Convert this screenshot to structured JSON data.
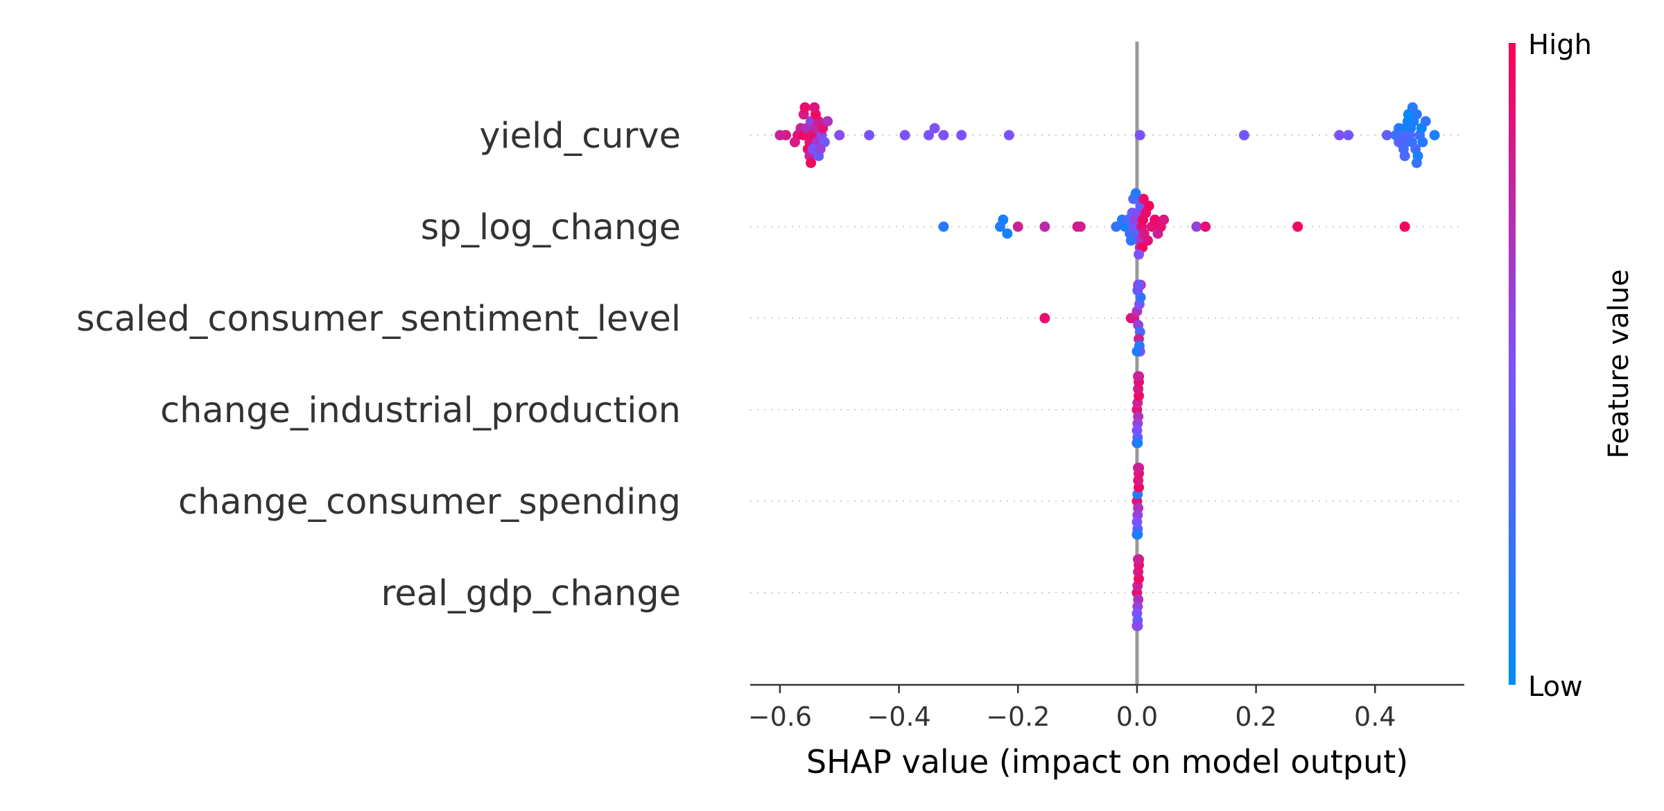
{
  "chart_data": {
    "type": "scatter",
    "subtype": "shap-beeswarm",
    "title": "",
    "xlabel": "SHAP value (impact on model output)",
    "ylabel": "",
    "xlim": [
      -0.65,
      0.55
    ],
    "x_ticks": [
      -0.6,
      -0.4,
      -0.2,
      0.0,
      0.2,
      0.4
    ],
    "x_tick_labels": [
      "−0.6",
      "−0.4",
      "−0.2",
      "0.0",
      "0.2",
      "0.4"
    ],
    "zero_line": 0.0,
    "grid": false,
    "features": [
      {
        "name": "yield_curve",
        "points": [
          {
            "x": -0.59,
            "v": 0.85
          },
          {
            "x": -0.57,
            "v": 0.9
          },
          {
            "x": -0.565,
            "v": 0.8
          },
          {
            "x": -0.56,
            "v": 0.95
          },
          {
            "x": -0.555,
            "v": 0.7
          },
          {
            "x": -0.55,
            "v": 0.88
          },
          {
            "x": -0.548,
            "v": 0.6
          },
          {
            "x": -0.545,
            "v": 0.92
          },
          {
            "x": -0.54,
            "v": 0.75
          },
          {
            "x": -0.538,
            "v": 0.65
          },
          {
            "x": -0.535,
            "v": 0.82
          },
          {
            "x": -0.53,
            "v": 0.55
          },
          {
            "x": -0.528,
            "v": 0.9
          },
          {
            "x": -0.525,
            "v": 0.45
          },
          {
            "x": -0.52,
            "v": 0.7
          },
          {
            "x": -0.553,
            "v": 0.98
          },
          {
            "x": -0.56,
            "v": 0.85
          },
          {
            "x": -0.55,
            "v": 0.78
          },
          {
            "x": -0.545,
            "v": 0.5
          },
          {
            "x": -0.54,
            "v": 0.95
          },
          {
            "x": -0.535,
            "v": 0.4
          },
          {
            "x": -0.558,
            "v": 0.93
          },
          {
            "x": -0.542,
            "v": 0.87
          },
          {
            "x": -0.532,
            "v": 0.6
          },
          {
            "x": -0.548,
            "v": 0.96
          },
          {
            "x": -0.6,
            "v": 0.8
          },
          {
            "x": -0.575,
            "v": 0.85
          },
          {
            "x": -0.5,
            "v": 0.55
          },
          {
            "x": -0.45,
            "v": 0.5
          },
          {
            "x": -0.39,
            "v": 0.5
          },
          {
            "x": -0.35,
            "v": 0.5
          },
          {
            "x": -0.34,
            "v": 0.5
          },
          {
            "x": -0.325,
            "v": 0.5
          },
          {
            "x": -0.295,
            "v": 0.5
          },
          {
            "x": -0.215,
            "v": 0.5
          },
          {
            "x": 0.005,
            "v": 0.5
          },
          {
            "x": 0.18,
            "v": 0.45
          },
          {
            "x": 0.34,
            "v": 0.5
          },
          {
            "x": 0.355,
            "v": 0.45
          },
          {
            "x": 0.42,
            "v": 0.4
          },
          {
            "x": 0.435,
            "v": 0.2
          },
          {
            "x": 0.44,
            "v": 0.15
          },
          {
            "x": 0.445,
            "v": 0.3
          },
          {
            "x": 0.45,
            "v": 0.1
          },
          {
            "x": 0.452,
            "v": 0.25
          },
          {
            "x": 0.455,
            "v": 0.05
          },
          {
            "x": 0.458,
            "v": 0.35
          },
          {
            "x": 0.46,
            "v": 0.12
          },
          {
            "x": 0.462,
            "v": 0.22
          },
          {
            "x": 0.465,
            "v": 0.08
          },
          {
            "x": 0.468,
            "v": 0.3
          },
          {
            "x": 0.47,
            "v": 0.18
          },
          {
            "x": 0.472,
            "v": 0.1
          },
          {
            "x": 0.475,
            "v": 0.25
          },
          {
            "x": 0.478,
            "v": 0.05
          },
          {
            "x": 0.48,
            "v": 0.15
          },
          {
            "x": 0.448,
            "v": 0.28
          },
          {
            "x": 0.456,
            "v": 0.02
          },
          {
            "x": 0.463,
            "v": 0.16
          },
          {
            "x": 0.45,
            "v": 0.3
          },
          {
            "x": 0.485,
            "v": 0.2
          },
          {
            "x": 0.5,
            "v": 0.1
          },
          {
            "x": 0.44,
            "v": 0.35
          },
          {
            "x": 0.47,
            "v": 0.2
          }
        ]
      },
      {
        "name": "sp_log_change",
        "points": [
          {
            "x": -0.325,
            "v": 0.15
          },
          {
            "x": -0.23,
            "v": 0.12
          },
          {
            "x": -0.225,
            "v": 0.1
          },
          {
            "x": -0.218,
            "v": 0.08
          },
          {
            "x": -0.2,
            "v": 0.8
          },
          {
            "x": -0.155,
            "v": 0.75
          },
          {
            "x": -0.1,
            "v": 0.85
          },
          {
            "x": -0.095,
            "v": 0.82
          },
          {
            "x": -0.035,
            "v": 0.2
          },
          {
            "x": -0.025,
            "v": 0.15
          },
          {
            "x": -0.02,
            "v": 0.1
          },
          {
            "x": -0.015,
            "v": 0.3
          },
          {
            "x": -0.012,
            "v": 0.25
          },
          {
            "x": -0.008,
            "v": 0.45
          },
          {
            "x": -0.005,
            "v": 0.5
          },
          {
            "x": -0.003,
            "v": 0.6
          },
          {
            "x": 0.0,
            "v": 0.35
          },
          {
            "x": 0.002,
            "v": 0.55
          },
          {
            "x": 0.004,
            "v": 0.65
          },
          {
            "x": 0.006,
            "v": 0.4
          },
          {
            "x": 0.008,
            "v": 0.9
          },
          {
            "x": 0.01,
            "v": 0.95
          },
          {
            "x": 0.012,
            "v": 0.85
          },
          {
            "x": 0.015,
            "v": 0.92
          },
          {
            "x": 0.018,
            "v": 0.88
          },
          {
            "x": 0.02,
            "v": 0.96
          },
          {
            "x": 0.025,
            "v": 0.9
          },
          {
            "x": 0.03,
            "v": 0.94
          },
          {
            "x": 0.035,
            "v": 0.8
          },
          {
            "x": 0.04,
            "v": 0.9
          },
          {
            "x": 0.045,
            "v": 0.85
          },
          {
            "x": 0.1,
            "v": 0.6
          },
          {
            "x": 0.115,
            "v": 0.9
          },
          {
            "x": 0.27,
            "v": 0.95
          },
          {
            "x": 0.45,
            "v": 0.97
          },
          {
            "x": -0.01,
            "v": 0.2
          },
          {
            "x": 0.005,
            "v": 0.7
          },
          {
            "x": -0.006,
            "v": 0.3
          },
          {
            "x": 0.009,
            "v": 0.97
          },
          {
            "x": 0.003,
            "v": 0.5
          },
          {
            "x": 0.011,
            "v": 0.92
          },
          {
            "x": -0.002,
            "v": 0.15
          }
        ]
      },
      {
        "name": "scaled_consumer_sentiment_level",
        "points": [
          {
            "x": -0.155,
            "v": 0.92
          },
          {
            "x": -0.01,
            "v": 0.9
          },
          {
            "x": -0.005,
            "v": 0.85
          },
          {
            "x": 0.0,
            "v": 0.7
          },
          {
            "x": 0.002,
            "v": 0.6
          },
          {
            "x": 0.004,
            "v": 0.5
          },
          {
            "x": 0.005,
            "v": 0.3
          },
          {
            "x": 0.006,
            "v": 0.2
          },
          {
            "x": 0.003,
            "v": 0.8
          },
          {
            "x": 0.001,
            "v": 0.4
          },
          {
            "x": 0.004,
            "v": 0.1
          },
          {
            "x": 0.002,
            "v": 0.65
          },
          {
            "x": 0.005,
            "v": 0.55
          },
          {
            "x": 0.003,
            "v": 0.75
          },
          {
            "x": 0.001,
            "v": 0.35
          },
          {
            "x": 0.006,
            "v": 0.9
          },
          {
            "x": 0.0,
            "v": 0.15
          },
          {
            "x": 0.004,
            "v": 0.45
          }
        ]
      },
      {
        "name": "change_industrial_production",
        "points": [
          {
            "x": 0.0,
            "v": 0.9
          },
          {
            "x": 0.001,
            "v": 0.8
          },
          {
            "x": 0.002,
            "v": 0.7
          },
          {
            "x": 0.003,
            "v": 0.95
          },
          {
            "x": 0.001,
            "v": 0.6
          },
          {
            "x": 0.002,
            "v": 0.85
          },
          {
            "x": 0.0,
            "v": 0.5
          },
          {
            "x": 0.003,
            "v": 0.9
          },
          {
            "x": 0.001,
            "v": 0.4
          },
          {
            "x": 0.002,
            "v": 0.75
          },
          {
            "x": 0.0,
            "v": 0.3
          },
          {
            "x": 0.003,
            "v": 0.92
          },
          {
            "x": 0.001,
            "v": 0.2
          },
          {
            "x": 0.002,
            "v": 0.88
          },
          {
            "x": 0.0,
            "v": 0.65
          },
          {
            "x": 0.003,
            "v": 0.97
          },
          {
            "x": 0.001,
            "v": 0.1
          },
          {
            "x": 0.002,
            "v": 0.8
          }
        ]
      },
      {
        "name": "change_consumer_spending",
        "points": [
          {
            "x": 0.0,
            "v": 0.9
          },
          {
            "x": 0.001,
            "v": 0.15
          },
          {
            "x": 0.002,
            "v": 0.7
          },
          {
            "x": 0.003,
            "v": 0.95
          },
          {
            "x": 0.001,
            "v": 0.6
          },
          {
            "x": 0.002,
            "v": 0.85
          },
          {
            "x": 0.0,
            "v": 0.5
          },
          {
            "x": 0.003,
            "v": 0.9
          },
          {
            "x": 0.001,
            "v": 0.4
          },
          {
            "x": 0.002,
            "v": 0.75
          },
          {
            "x": 0.0,
            "v": 0.3
          },
          {
            "x": 0.003,
            "v": 0.92
          },
          {
            "x": 0.001,
            "v": 0.2
          },
          {
            "x": 0.002,
            "v": 0.88
          },
          {
            "x": 0.0,
            "v": 0.65
          },
          {
            "x": 0.003,
            "v": 0.97
          },
          {
            "x": 0.001,
            "v": 0.1
          },
          {
            "x": 0.002,
            "v": 0.8
          }
        ]
      },
      {
        "name": "real_gdp_change",
        "points": [
          {
            "x": 0.0,
            "v": 0.9
          },
          {
            "x": 0.001,
            "v": 0.8
          },
          {
            "x": 0.002,
            "v": 0.7
          },
          {
            "x": 0.003,
            "v": 0.95
          },
          {
            "x": 0.001,
            "v": 0.6
          },
          {
            "x": 0.002,
            "v": 0.85
          },
          {
            "x": 0.0,
            "v": 0.5
          },
          {
            "x": 0.003,
            "v": 0.9
          },
          {
            "x": 0.001,
            "v": 0.4
          },
          {
            "x": 0.002,
            "v": 0.75
          },
          {
            "x": 0.0,
            "v": 0.3
          },
          {
            "x": 0.003,
            "v": 0.92
          },
          {
            "x": 0.001,
            "v": 0.2
          },
          {
            "x": 0.002,
            "v": 0.88
          },
          {
            "x": 0.0,
            "v": 0.65
          },
          {
            "x": 0.003,
            "v": 0.97
          },
          {
            "x": 0.001,
            "v": 0.55
          },
          {
            "x": 0.002,
            "v": 0.8
          }
        ]
      }
    ],
    "colorbar": {
      "title": "Feature value",
      "high_label": "High",
      "low_label": "Low",
      "low_color": "#008bfb",
      "mid_color": "#7c52ff",
      "high_color": "#ff0052"
    }
  }
}
